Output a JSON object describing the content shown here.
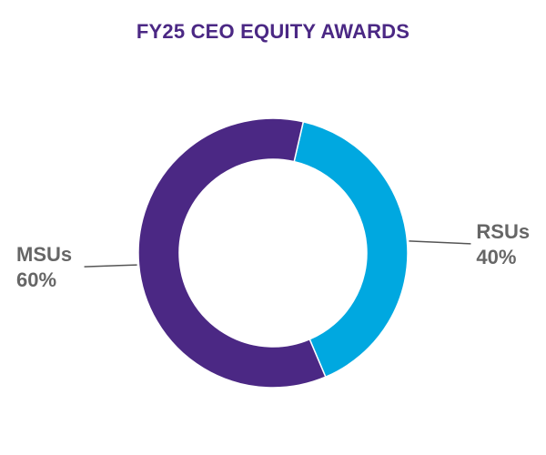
{
  "chart_data": {
    "type": "pie",
    "variant": "donut",
    "title": "FY25 CEO EQUITY AWARDS",
    "slices": [
      {
        "label": "RSUs",
        "percent_label": "40%",
        "value": 40,
        "color": "#00a8e0"
      },
      {
        "label": "MSUs",
        "percent_label": "60%",
        "value": 60,
        "color": "#4b2884"
      }
    ],
    "legend": "none",
    "colors": {
      "title": "#4b2884",
      "label_text": "#666666",
      "leader_line": "#555555",
      "slice_separator": "#ffffff"
    }
  }
}
